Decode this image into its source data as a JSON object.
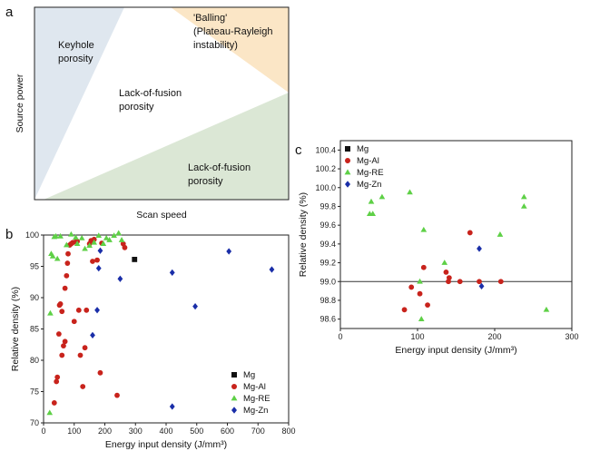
{
  "figure": {
    "colors": {
      "keyhole": "#dfe7ef",
      "balling": "#fbe6c6",
      "lof_lower": "#dbe7d5",
      "Mg": "#111111",
      "Mg-Al": "#c8231c",
      "Mg-RE": "#5ed046",
      "Mg-Zn": "#1a2ea8"
    }
  },
  "panel_a": {
    "label": "a",
    "ylabel": "Source power",
    "xlabel": "Scan speed",
    "region_labels": {
      "keyhole": [
        "Keyhole",
        "porosity"
      ],
      "balling": [
        "'Balling'",
        "(Plateau-Rayleigh",
        "instability)"
      ],
      "lof_center": [
        "Lack-of-fusion",
        "porosity"
      ],
      "lof_lower": [
        "Lack-of-fusion",
        "porosity"
      ]
    }
  },
  "chart_data": [
    {
      "panel": "b",
      "type": "scatter",
      "xlabel": "Energy input density (J/mm³)",
      "ylabel": "Relative density (%)",
      "xlim": [
        0,
        800
      ],
      "ylim": [
        70,
        100
      ],
      "xticks": [
        "0",
        "100",
        "200",
        "300",
        "400",
        "500",
        "600",
        "700",
        "800"
      ],
      "yticks": [
        "70",
        "75",
        "80",
        "85",
        "90",
        "95",
        "100"
      ],
      "legend_position": "bottom-right",
      "series": [
        {
          "name": "Mg",
          "marker": "square",
          "points": [
            [
              297,
              96.1
            ]
          ]
        },
        {
          "name": "Mg-Al",
          "marker": "circle",
          "points": [
            [
              35,
              73.2
            ],
            [
              42,
              76.6
            ],
            [
              45,
              77.3
            ],
            [
              50,
              84.2
            ],
            [
              52,
              88.8
            ],
            [
              55,
              89
            ],
            [
              60,
              87.8
            ],
            [
              60,
              80.8
            ],
            [
              65,
              82.3
            ],
            [
              70,
              83
            ],
            [
              70,
              91.5
            ],
            [
              75,
              93.5
            ],
            [
              78,
              95.5
            ],
            [
              80,
              97
            ],
            [
              85,
              98.4
            ],
            [
              90,
              98.6
            ],
            [
              95,
              98.8
            ],
            [
              100,
              86.2
            ],
            [
              105,
              98.9
            ],
            [
              110,
              99
            ],
            [
              115,
              88
            ],
            [
              120,
              80.8
            ],
            [
              128,
              75.8
            ],
            [
              135,
              82
            ],
            [
              140,
              88
            ],
            [
              150,
              98.6
            ],
            [
              155,
              99.1
            ],
            [
              160,
              95.8
            ],
            [
              165,
              99.3
            ],
            [
              175,
              96
            ],
            [
              185,
              78
            ],
            [
              190,
              98.7
            ],
            [
              240,
              74.4
            ],
            [
              260,
              98.6
            ],
            [
              265,
              98
            ]
          ]
        },
        {
          "name": "Mg-RE",
          "marker": "triangle",
          "points": [
            [
              20,
              71.6
            ],
            [
              22,
              87.5
            ],
            [
              25,
              97
            ],
            [
              30,
              96.6
            ],
            [
              35,
              99.7
            ],
            [
              40,
              99.8
            ],
            [
              45,
              96.2
            ],
            [
              55,
              99.8
            ],
            [
              75,
              98.4
            ],
            [
              90,
              100.1
            ],
            [
              105,
              99.6
            ],
            [
              110,
              98.6
            ],
            [
              125,
              99.5
            ],
            [
              135,
              97.8
            ],
            [
              150,
              98.3
            ],
            [
              165,
              98.8
            ],
            [
              180,
              99.9
            ],
            [
              195,
              98.6
            ],
            [
              205,
              99.5
            ],
            [
              215,
              99.2
            ],
            [
              230,
              99.9
            ],
            [
              245,
              100.3
            ],
            [
              255,
              99.2
            ]
          ]
        },
        {
          "name": "Mg-Zn",
          "marker": "diamond",
          "points": [
            [
              160,
              84
            ],
            [
              175,
              88
            ],
            [
              180,
              94.7
            ],
            [
              185,
              97.5
            ],
            [
              250,
              93
            ],
            [
              420,
              94
            ],
            [
              420,
              72.6
            ],
            [
              495,
              88.6
            ],
            [
              605,
              97.4
            ],
            [
              745,
              94.5
            ]
          ]
        }
      ]
    },
    {
      "panel": "c",
      "type": "scatter",
      "xlabel": "Energy input density (J/mm³)",
      "ylabel": "Relative density (%)",
      "xlim": [
        0,
        300
      ],
      "ylim": [
        98.5,
        100.5
      ],
      "xticks": [
        "0",
        "100",
        "200",
        "300"
      ],
      "yticks": [
        "98.6",
        "98.8",
        "99.0",
        "99.2",
        "99.4",
        "99.6",
        "99.8",
        "100.0",
        "100.2",
        "100.4"
      ],
      "reference_line_y": 99.0,
      "legend_position": "top-left",
      "series": [
        {
          "name": "Mg",
          "marker": "square",
          "points": []
        },
        {
          "name": "Mg-Al",
          "marker": "circle",
          "points": [
            [
              83,
              98.7
            ],
            [
              92,
              98.94
            ],
            [
              103,
              98.87
            ],
            [
              108,
              99.15
            ],
            [
              113,
              98.75
            ],
            [
              137,
              99.1
            ],
            [
              141,
              99.04
            ],
            [
              140,
              99
            ],
            [
              155,
              99
            ],
            [
              168,
              99.52
            ],
            [
              180,
              99
            ],
            [
              208,
              99
            ]
          ]
        },
        {
          "name": "Mg-RE",
          "marker": "triangle",
          "points": [
            [
              38,
              99.72
            ],
            [
              40,
              99.85
            ],
            [
              42,
              99.72
            ],
            [
              54,
              99.9
            ],
            [
              90,
              99.95
            ],
            [
              103,
              99
            ],
            [
              105,
              98.6
            ],
            [
              108,
              99.55
            ],
            [
              135,
              99.2
            ],
            [
              207,
              99.5
            ],
            [
              238,
              99.9
            ],
            [
              238,
              99.8
            ],
            [
              267,
              98.7
            ]
          ]
        },
        {
          "name": "Mg-Zn",
          "marker": "diamond",
          "points": [
            [
              180,
              99.35
            ],
            [
              183,
              98.95
            ]
          ]
        }
      ]
    }
  ]
}
